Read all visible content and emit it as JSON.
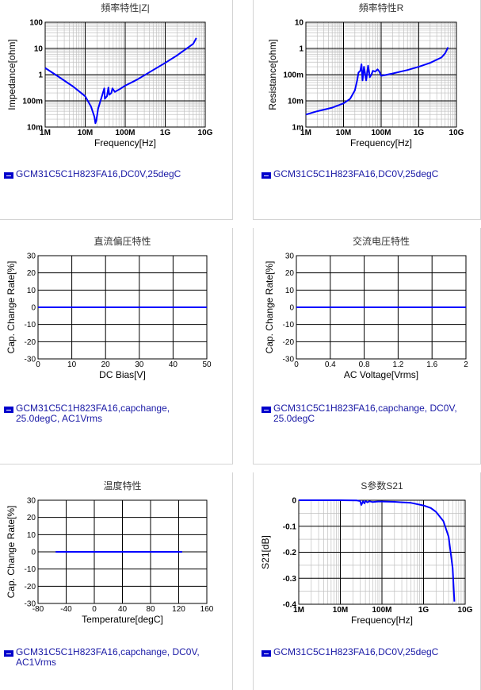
{
  "colors": {
    "series": "#0000ff",
    "grid_major": "#000000",
    "grid_minor": "#c0c0c0",
    "legend_text": "#1a1aa6"
  },
  "chart_data": [
    {
      "id": "impedance",
      "type": "line",
      "title": "頻率特性|Z|",
      "xlabel": "Frequency[Hz]",
      "ylabel": "Impedance[ohm]",
      "xscale": "log",
      "yscale": "log",
      "xlim": [
        1000000,
        10000000000
      ],
      "ylim": [
        0.01,
        100
      ],
      "xticks": [
        "1M",
        "10M",
        "100M",
        "1G",
        "10G"
      ],
      "yticks": [
        "10m",
        "100m",
        "1",
        "10",
        "100"
      ],
      "grid": true,
      "legend": "GCM31C5C1H823FA16,DC0V,25degC",
      "series": [
        {
          "x": [
            1000000,
            2000000,
            5000000,
            10000000,
            14000000,
            17000000,
            18000000,
            19000000,
            21000000,
            25000000,
            30000000,
            31000000,
            35000000,
            38000000,
            40000000,
            45000000,
            48000000,
            55000000,
            70000000,
            100000000,
            200000000,
            500000000,
            1000000000,
            2000000000,
            5000000000,
            6000000000
          ],
          "y": [
            1.8,
            0.9,
            0.35,
            0.15,
            0.06,
            0.025,
            0.014,
            0.018,
            0.05,
            0.12,
            0.3,
            0.12,
            0.15,
            0.32,
            0.17,
            0.2,
            0.3,
            0.22,
            0.27,
            0.38,
            0.65,
            1.5,
            2.8,
            5.5,
            15,
            25
          ]
        }
      ]
    },
    {
      "id": "resistance",
      "type": "line",
      "title": "頻率特性R",
      "xlabel": "Frequency[Hz]",
      "ylabel": "Resistance[ohm]",
      "xscale": "log",
      "yscale": "log",
      "xlim": [
        1000000,
        10000000000
      ],
      "ylim": [
        0.001,
        10
      ],
      "xticks": [
        "1M",
        "10M",
        "100M",
        "1G",
        "10G"
      ],
      "yticks": [
        "1m",
        "10m",
        "100m",
        "1",
        "10"
      ],
      "grid": true,
      "legend": "GCM31C5C1H823FA16,DC0V,25degC",
      "series": [
        {
          "x": [
            1000000,
            2000000,
            5000000,
            10000000,
            15000000,
            20000000,
            23000000,
            25000000,
            28000000,
            30000000,
            32000000,
            35000000,
            40000000,
            45000000,
            50000000,
            55000000,
            60000000,
            70000000,
            80000000,
            90000000,
            100000000,
            200000000,
            500000000,
            1000000000,
            2000000000,
            4000000000,
            5000000000,
            6000000000
          ],
          "y": [
            0.003,
            0.004,
            0.0055,
            0.008,
            0.012,
            0.025,
            0.06,
            0.12,
            0.14,
            0.25,
            0.06,
            0.2,
            0.06,
            0.22,
            0.08,
            0.1,
            0.14,
            0.13,
            0.16,
            0.13,
            0.09,
            0.11,
            0.15,
            0.2,
            0.28,
            0.45,
            0.65,
            1.1
          ]
        }
      ]
    },
    {
      "id": "dc-bias",
      "type": "line",
      "title": "直流偏圧特性",
      "xlabel": "DC Bias[V]",
      "ylabel": "Cap. Change Rate[%]",
      "xscale": "linear",
      "yscale": "linear",
      "xlim": [
        0,
        50
      ],
      "ylim": [
        -30,
        30
      ],
      "xticks": [
        "0",
        "10",
        "20",
        "30",
        "40",
        "50"
      ],
      "yticks": [
        "-30",
        "-20",
        "-10",
        "0",
        "10",
        "20",
        "30"
      ],
      "grid": true,
      "legend": "GCM31C5C1H823FA16,capchange,\n25.0degC, AC1Vrms",
      "series": [
        {
          "x": [
            0,
            10,
            20,
            30,
            40,
            50
          ],
          "y": [
            0,
            0,
            0,
            0,
            0,
            0
          ]
        }
      ]
    },
    {
      "id": "ac-voltage",
      "type": "line",
      "title": "交流电圧特性",
      "xlabel": "AC Voltage[Vrms]",
      "ylabel": "Cap. Change Rate[%]",
      "xscale": "linear",
      "yscale": "linear",
      "xlim": [
        0,
        2
      ],
      "ylim": [
        -30,
        30
      ],
      "xticks": [
        "0",
        "0.4",
        "0.8",
        "1.2",
        "1.6",
        "2"
      ],
      "yticks": [
        "-30",
        "-20",
        "-10",
        "0",
        "10",
        "20",
        "30"
      ],
      "grid": true,
      "legend": "GCM31C5C1H823FA16,capchange, DC0V,\n25.0degC",
      "series": [
        {
          "x": [
            0,
            0.4,
            0.8,
            1.2,
            1.6,
            2
          ],
          "y": [
            0,
            0,
            0,
            0,
            0,
            0
          ]
        }
      ]
    },
    {
      "id": "temperature",
      "type": "line",
      "title": "温度特性",
      "xlabel": "Temperature[degC]",
      "ylabel": "Cap. Change Rate[%]",
      "xscale": "linear",
      "yscale": "linear",
      "xlim": [
        -80,
        160
      ],
      "ylim": [
        -30,
        30
      ],
      "xticks": [
        "-80",
        "-40",
        "0",
        "40",
        "80",
        "120",
        "160"
      ],
      "yticks": [
        "-30",
        "-20",
        "-10",
        "0",
        "10",
        "20",
        "30"
      ],
      "grid": true,
      "legend": "GCM31C5C1H823FA16,capchange, DC0V,\nAC1Vrms",
      "series": [
        {
          "x": [
            -55,
            0,
            25,
            85,
            125
          ],
          "y": [
            0,
            0,
            0,
            0,
            0
          ]
        }
      ]
    },
    {
      "id": "s21",
      "type": "line",
      "title": "S参数S21",
      "xlabel": "Frequency[Hz]",
      "ylabel": "S21[dB]",
      "xscale": "log",
      "yscale": "linear",
      "xlim": [
        1000000,
        10000000000
      ],
      "ylim": [
        -0.4,
        0
      ],
      "xticks": [
        "1M",
        "10M",
        "100M",
        "1G",
        "10G"
      ],
      "yticks": [
        "-0.4",
        "-0.3",
        "-0.2",
        "-0.1",
        "0"
      ],
      "grid": true,
      "legend": "GCM31C5C1H823FA16,DC0V,25degC",
      "series": [
        {
          "x": [
            1000000,
            10000000,
            25000000,
            30000000,
            32000000,
            35000000,
            38000000,
            40000000,
            45000000,
            50000000,
            60000000,
            80000000,
            100000000,
            200000000,
            500000000,
            1000000000,
            1500000000,
            2000000000,
            3000000000,
            4000000000,
            5000000000,
            5500000000
          ],
          "y": [
            0,
            0,
            -0.001,
            -0.003,
            -0.018,
            -0.004,
            -0.012,
            -0.003,
            -0.008,
            -0.004,
            -0.007,
            -0.005,
            -0.005,
            -0.006,
            -0.01,
            -0.02,
            -0.03,
            -0.045,
            -0.08,
            -0.14,
            -0.26,
            -0.39
          ]
        }
      ]
    }
  ]
}
